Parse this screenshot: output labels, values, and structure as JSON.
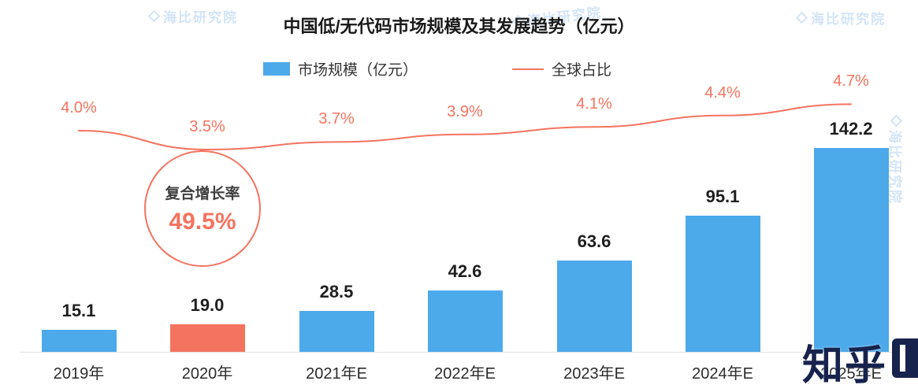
{
  "colors": {
    "bar": "#4CA9EA",
    "bar_highlight": "#F4735F",
    "line": "#F4735F",
    "percent_label": "#F4735F",
    "value_label": "#1F1F1F",
    "axis_label": "#2B2B2B",
    "annotation_value": "#F4735F",
    "annotation_border": "#F4735F",
    "watermark": "#9CC4EC",
    "zhihu": "#17234D"
  },
  "watermarks": {
    "brand": "海比研究院",
    "zhihu": "知乎"
  },
  "chart_data": {
    "type": "combo",
    "title": "中国低/无代码市场规模及其发展趋势（亿元）",
    "categories": [
      "2019年",
      "2020年",
      "2021年E",
      "2022年E",
      "2023年E",
      "2024年E",
      "2025年E"
    ],
    "series": [
      {
        "name": "市场规模（亿元）",
        "type": "bar",
        "values": [
          15.1,
          19.0,
          28.5,
          42.6,
          63.6,
          95.1,
          142.2
        ],
        "value_labels": [
          "15.1",
          "19.0",
          "28.5",
          "42.6",
          "63.6",
          "95.1",
          "142.2"
        ],
        "highlight_index": 1
      },
      {
        "name": "全球占比",
        "type": "line",
        "unit": "%",
        "values": [
          4.0,
          3.5,
          3.7,
          3.9,
          4.1,
          4.4,
          4.7
        ],
        "value_labels": [
          "4.0%",
          "3.5%",
          "3.7%",
          "3.9%",
          "4.1%",
          "4.4%",
          "4.7%"
        ]
      }
    ],
    "annotation": {
      "label": "复合增长率",
      "value": "49.5%"
    },
    "legend_position": "top",
    "grid": false
  }
}
